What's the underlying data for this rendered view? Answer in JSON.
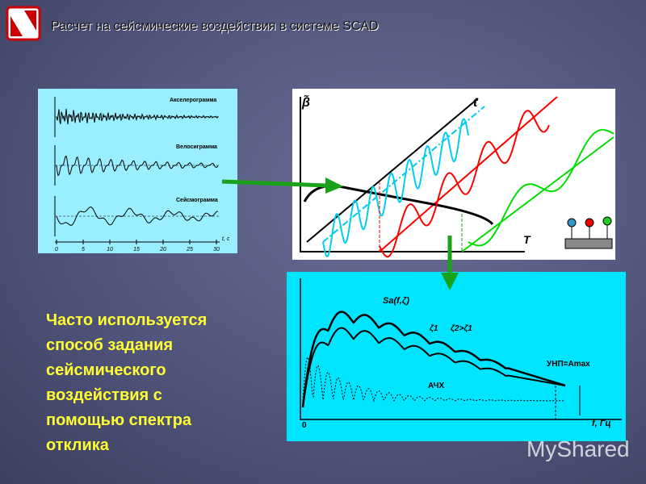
{
  "header": {
    "title": "Расчет на сейсмические воздействия в системе  SCAD"
  },
  "body": {
    "lines": [
      "Часто используется",
      "способ задания",
      "сейсмического",
      "воздействия с",
      "помощью спектра",
      "отклика"
    ]
  },
  "figure1": {
    "labels": [
      "Акселерограмма",
      "Велосиграмма",
      "Сейсмограмма"
    ],
    "axis_label": "t, c",
    "ticks": [
      "0",
      "5",
      "10",
      "15",
      "20",
      "25",
      "30"
    ]
  },
  "figure2": {
    "y_label": "β̃",
    "t_label": "t",
    "x_label": "T"
  },
  "figure3": {
    "spectrum": "Sa(f,ζ)",
    "zeta1": "ζ1",
    "zeta2": "ζ2>ζ1",
    "afc": "АЧХ",
    "unp": "УНП=Amax",
    "x_label": "f, Гц",
    "origin": "0"
  },
  "watermark": "MyShared"
}
